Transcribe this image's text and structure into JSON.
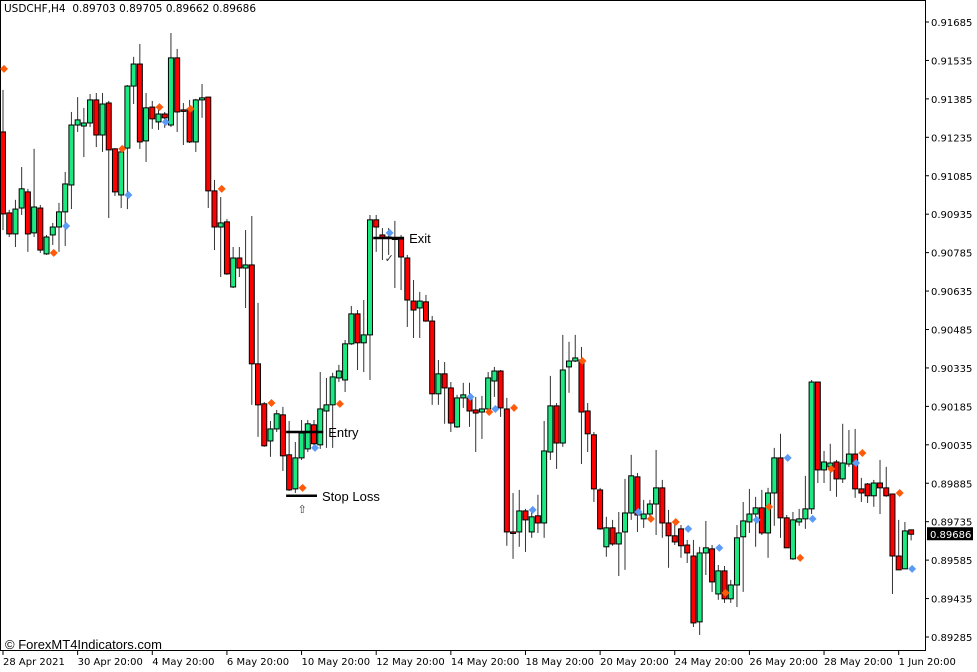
{
  "header": {
    "symbol": "USDCHF,H4",
    "ohlc": "0.89703 0.89705 0.89662 0.89686"
  },
  "watermark": "© ForexMT4Indicators.com",
  "colors": {
    "bull": "#1de982",
    "bear": "#ff0000",
    "sell_marker": "#ff5a0a",
    "buy_marker": "#5b9bf5",
    "price_box": "#000000"
  },
  "chart_data": {
    "type": "candlestick",
    "symbol": "USDCHF",
    "timeframe": "H4",
    "ylim": [
      0.89285,
      0.91685
    ],
    "y_ticks": [
      "0.91685",
      "0.91535",
      "0.91385",
      "0.91235",
      "0.91085",
      "0.90935",
      "0.90785",
      "0.90635",
      "0.90485",
      "0.90335",
      "0.90185",
      "0.90035",
      "0.89885",
      "0.89735",
      "0.89585",
      "0.89435",
      "0.89285"
    ],
    "current_price": "0.89686",
    "x_ticks": [
      {
        "candle": 1,
        "label": "28 Apr 2021"
      },
      {
        "candle": 13,
        "label": "30 Apr 20:00"
      },
      {
        "candle": 25,
        "label": "4 May 20:00"
      },
      {
        "candle": 37,
        "label": "6 May 20:00"
      },
      {
        "candle": 49,
        "label": "10 May 20:00"
      },
      {
        "candle": 61,
        "label": "12 May 20:00"
      },
      {
        "candle": 73,
        "label": "14 May 20:00"
      },
      {
        "candle": 85,
        "label": "18 May 20:00"
      },
      {
        "candle": 97,
        "label": "20 May 20:00"
      },
      {
        "candle": 109,
        "label": "24 May 20:00"
      },
      {
        "candle": 121,
        "label": "26 May 20:00"
      },
      {
        "candle": 133,
        "label": "28 May 20:00"
      },
      {
        "candle": 145,
        "label": "1 Jun 20:00"
      }
    ],
    "ohlc_fields": [
      "open",
      "high",
      "low",
      "close"
    ],
    "candles": [
      [
        0.91256,
        0.9142,
        0.90873,
        0.90936
      ],
      [
        0.9094,
        0.90952,
        0.90846,
        0.90858
      ],
      [
        0.90858,
        0.90991,
        0.90807,
        0.90955
      ],
      [
        0.90959,
        0.91119,
        0.90932,
        0.91034
      ],
      [
        0.91022,
        0.91034,
        0.90788,
        0.90858
      ],
      [
        0.90862,
        0.9119,
        0.90846,
        0.90963
      ],
      [
        0.90959,
        0.90971,
        0.90784,
        0.90795
      ],
      [
        0.9078,
        0.90854,
        0.90776,
        0.90846
      ],
      [
        0.90854,
        0.90901,
        0.90815,
        0.90885
      ],
      [
        0.90885,
        0.90979,
        0.90788,
        0.90944
      ],
      [
        0.90944,
        0.911,
        0.90811,
        0.91053
      ],
      [
        0.91049,
        0.91334,
        0.90955,
        0.91283
      ],
      [
        0.91283,
        0.91392,
        0.91256,
        0.91303
      ],
      [
        0.91279,
        0.9135,
        0.91158,
        0.91291
      ],
      [
        0.91291,
        0.91404,
        0.91275,
        0.91381
      ],
      [
        0.91381,
        0.91408,
        0.91197,
        0.91244
      ],
      [
        0.91244,
        0.91408,
        0.91178,
        0.91365
      ],
      [
        0.91369,
        0.91377,
        0.9092,
        0.91186
      ],
      [
        0.9119,
        0.91193,
        0.91006,
        0.91022
      ],
      [
        0.9101,
        0.9119,
        0.90959,
        0.91178
      ],
      [
        0.91193,
        0.91439,
        0.90955,
        0.91435
      ],
      [
        0.91435,
        0.91549,
        0.91365,
        0.91521
      ],
      [
        0.91521,
        0.91599,
        0.9119,
        0.91217
      ],
      [
        0.91221,
        0.91408,
        0.91139,
        0.9135
      ],
      [
        0.91353,
        0.91377,
        0.91268,
        0.91307
      ],
      [
        0.91295,
        0.91361,
        0.91264,
        0.91326
      ],
      [
        0.91326,
        0.91334,
        0.91272,
        0.91311
      ],
      [
        0.91283,
        0.91642,
        0.91275,
        0.91545
      ],
      [
        0.91545,
        0.9158,
        0.91256,
        0.91334
      ],
      [
        0.91342,
        0.91369,
        0.91205,
        0.91338
      ],
      [
        0.91346,
        0.91381,
        0.91213,
        0.91217
      ],
      [
        0.91217,
        0.91385,
        0.91178,
        0.91381
      ],
      [
        0.91381,
        0.91443,
        0.91311,
        0.91389
      ],
      [
        0.91392,
        0.91392,
        0.90959,
        0.91026
      ],
      [
        0.91026,
        0.91069,
        0.90795,
        0.90885
      ],
      [
        0.90885,
        0.91002,
        0.9069,
        0.90901
      ],
      [
        0.90905,
        0.90916,
        0.90698,
        0.90702
      ],
      [
        0.90651,
        0.90807,
        0.90647,
        0.90764
      ],
      [
        0.90764,
        0.90807,
        0.9069,
        0.90725
      ],
      [
        0.90725,
        0.90873,
        0.90569,
        0.90737
      ],
      [
        0.90737,
        0.90928,
        0.90191,
        0.90351
      ],
      [
        0.90351,
        0.90589,
        0.90066,
        0.90191
      ],
      [
        0.90195,
        0.90202,
        0.90027,
        0.90031
      ],
      [
        0.9005,
        0.90128,
        0.89988,
        0.90097
      ],
      [
        0.90097,
        0.90171,
        0.90085,
        0.90156
      ],
      [
        0.90152,
        0.90183,
        0.89933,
        0.89992
      ],
      [
        0.89996,
        0.90128,
        0.89855,
        0.89859
      ],
      [
        0.89863,
        0.90046,
        0.89847,
        0.89984
      ],
      [
        0.89984,
        0.90132,
        0.89976,
        0.90081
      ],
      [
        0.90019,
        0.90132,
        0.90007,
        0.90117
      ],
      [
        0.90113,
        0.90132,
        0.90027,
        0.90039
      ],
      [
        0.90035,
        0.90319,
        0.90019,
        0.90175
      ],
      [
        0.90167,
        0.90296,
        0.90023,
        0.90191
      ],
      [
        0.90191,
        0.90316,
        0.90023,
        0.903
      ],
      [
        0.90296,
        0.90347,
        0.9028,
        0.90323
      ],
      [
        0.90288,
        0.90444,
        0.90241,
        0.90429
      ],
      [
        0.90429,
        0.90577,
        0.90425,
        0.90546
      ],
      [
        0.90546,
        0.90561,
        0.90327,
        0.90433
      ],
      [
        0.90433,
        0.906,
        0.90319,
        0.90464
      ],
      [
        0.90464,
        0.90932,
        0.90288,
        0.90913
      ],
      [
        0.90913,
        0.90932,
        0.90788,
        0.90885
      ],
      [
        0.90854,
        0.90881,
        0.90756,
        0.90842
      ],
      [
        0.90846,
        0.90881,
        0.90776,
        0.90842
      ],
      [
        0.90842,
        0.90909,
        0.90647,
        0.90838
      ],
      [
        0.90838,
        0.90854,
        0.90639,
        0.90768
      ],
      [
        0.90764,
        0.90776,
        0.90495,
        0.906
      ],
      [
        0.90596,
        0.90678,
        0.90452,
        0.90561
      ],
      [
        0.90569,
        0.90632,
        0.90452,
        0.90596
      ],
      [
        0.90593,
        0.9062,
        0.90515,
        0.90518
      ],
      [
        0.90518,
        0.90538,
        0.90191,
        0.90234
      ],
      [
        0.90234,
        0.90366,
        0.90191,
        0.90312
      ],
      [
        0.90312,
        0.90358,
        0.90117,
        0.90257
      ],
      [
        0.90257,
        0.9028,
        0.90085,
        0.9012
      ],
      [
        0.90105,
        0.9023,
        0.90101,
        0.90218
      ],
      [
        0.90218,
        0.90277,
        0.90179,
        0.9023
      ],
      [
        0.90218,
        0.90277,
        0.90105,
        0.90167
      ],
      [
        0.90171,
        0.90222,
        0.90007,
        0.90159
      ],
      [
        0.90163,
        0.90226,
        0.90058,
        0.90175
      ],
      [
        0.90175,
        0.90319,
        0.90171,
        0.90296
      ],
      [
        0.90284,
        0.90339,
        0.90222,
        0.90323
      ],
      [
        0.90323,
        0.90327,
        0.90144,
        0.90179
      ],
      [
        0.90175,
        0.90218,
        0.89641,
        0.89695
      ],
      [
        0.89695,
        0.89847,
        0.8959,
        0.89691
      ],
      [
        0.89695,
        0.89859,
        0.89637,
        0.89777
      ],
      [
        0.89777,
        0.89785,
        0.89617,
        0.89742
      ],
      [
        0.89695,
        0.89777,
        0.89672,
        0.89754
      ],
      [
        0.89758,
        0.8984,
        0.89691,
        0.8973
      ],
      [
        0.8973,
        0.90128,
        0.89672,
        0.90011
      ],
      [
        0.90007,
        0.90304,
        0.89976,
        0.90187
      ],
      [
        0.90187,
        0.90198,
        0.89941,
        0.90042
      ],
      [
        0.90042,
        0.90464,
        0.90027,
        0.90327
      ],
      [
        0.90339,
        0.90437,
        0.90238,
        0.90362
      ],
      [
        0.90362,
        0.90464,
        0.90358,
        0.90374
      ],
      [
        0.90366,
        0.90417,
        0.8996,
        0.90163
      ],
      [
        0.90167,
        0.90198,
        0.90007,
        0.90078
      ],
      [
        0.90074,
        0.90085,
        0.89812,
        0.89863
      ],
      [
        0.89859,
        0.89867,
        0.89703,
        0.89707
      ],
      [
        0.89637,
        0.89754,
        0.89598,
        0.89711
      ],
      [
        0.89711,
        0.89742,
        0.89641,
        0.89648
      ],
      [
        0.89648,
        0.89773,
        0.89523,
        0.89691
      ],
      [
        0.89695,
        0.89902,
        0.89547,
        0.89769
      ],
      [
        0.89769,
        0.89996,
        0.89742,
        0.89914
      ],
      [
        0.8991,
        0.89925,
        0.89695,
        0.89761
      ],
      [
        0.89746,
        0.8982,
        0.89711,
        0.89765
      ],
      [
        0.89765,
        0.8982,
        0.89742,
        0.89804
      ],
      [
        0.89804,
        0.90015,
        0.89683,
        0.89867
      ],
      [
        0.89867,
        0.89898,
        0.89672,
        0.8973
      ],
      [
        0.8973,
        0.89781,
        0.89555,
        0.8968
      ],
      [
        0.8968,
        0.89742,
        0.89644,
        0.89656
      ],
      [
        0.89707,
        0.89722,
        0.89594,
        0.89641
      ],
      [
        0.89644,
        0.89664,
        0.89574,
        0.89613
      ],
      [
        0.89601,
        0.89664,
        0.89324,
        0.8934
      ],
      [
        0.89344,
        0.89637,
        0.89293,
        0.89613
      ],
      [
        0.89613,
        0.89738,
        0.89527,
        0.89633
      ],
      [
        0.89629,
        0.89644,
        0.89461,
        0.895
      ],
      [
        0.89453,
        0.89566,
        0.8943,
        0.89543
      ],
      [
        0.89543,
        0.89562,
        0.89418,
        0.89434
      ],
      [
        0.89434,
        0.89508,
        0.89418,
        0.89488
      ],
      [
        0.89488,
        0.89722,
        0.89402,
        0.89672
      ],
      [
        0.89676,
        0.89812,
        0.89461,
        0.89738
      ],
      [
        0.89734,
        0.89863,
        0.89691,
        0.89765
      ],
      [
        0.89765,
        0.89832,
        0.89637,
        0.89789
      ],
      [
        0.89789,
        0.89859,
        0.89683,
        0.89691
      ],
      [
        0.89691,
        0.89867,
        0.89594,
        0.89847
      ],
      [
        0.89847,
        0.90023,
        0.89719,
        0.89984
      ],
      [
        0.89984,
        0.90078,
        0.89672,
        0.8975
      ],
      [
        0.8975,
        0.89761,
        0.89633,
        0.89633
      ],
      [
        0.8959,
        0.89773,
        0.89586,
        0.89742
      ],
      [
        0.89734,
        0.89785,
        0.89719,
        0.89746
      ],
      [
        0.89746,
        0.89914,
        0.89707,
        0.89785
      ],
      [
        0.89785,
        0.90288,
        0.89765,
        0.9028
      ],
      [
        0.9028,
        0.9028,
        0.89886,
        0.89937
      ],
      [
        0.89937,
        0.90011,
        0.89886,
        0.89968
      ],
      [
        0.89949,
        0.90039,
        0.89855,
        0.89964
      ],
      [
        0.89968,
        0.89976,
        0.89832,
        0.89902
      ],
      [
        0.89902,
        0.90117,
        0.89886,
        0.89964
      ],
      [
        0.8996,
        0.90093,
        0.89949,
        0.89999
      ],
      [
        0.89999,
        0.90097,
        0.89828,
        0.89863
      ],
      [
        0.89863,
        0.89906,
        0.89812,
        0.89847
      ],
      [
        0.89882,
        0.89886,
        0.89808,
        0.89836
      ],
      [
        0.89836,
        0.89898,
        0.89793,
        0.89886
      ],
      [
        0.89886,
        0.89976,
        0.89765,
        0.89867
      ],
      [
        0.89867,
        0.89949,
        0.89832,
        0.89836
      ],
      [
        0.89843,
        0.89843,
        0.89453,
        0.89601
      ],
      [
        0.89601,
        0.89742,
        0.89547,
        0.89547
      ],
      [
        0.89551,
        0.89734,
        0.89551,
        0.89699
      ],
      [
        0.89703,
        0.89705,
        0.89662,
        0.89686
      ]
    ],
    "markers": [
      {
        "candle": 1,
        "price": 0.91502,
        "type": "sell"
      },
      {
        "candle": 9,
        "price": 0.90784,
        "type": "sell"
      },
      {
        "candle": 11,
        "price": 0.90889,
        "type": "buy"
      },
      {
        "candle": 20,
        "price": 0.9119,
        "type": "sell"
      },
      {
        "candle": 21,
        "price": 0.9101,
        "type": "buy"
      },
      {
        "candle": 26,
        "price": 0.91353,
        "type": "sell"
      },
      {
        "candle": 27,
        "price": 0.91295,
        "type": "buy"
      },
      {
        "candle": 31,
        "price": 0.91346,
        "type": "sell"
      },
      {
        "candle": 36,
        "price": 0.91034,
        "type": "sell"
      },
      {
        "candle": 44,
        "price": 0.90198,
        "type": "sell"
      },
      {
        "candle": 49,
        "price": 0.89867,
        "type": "sell"
      },
      {
        "candle": 51,
        "price": 0.90023,
        "type": "buy"
      },
      {
        "candle": 55,
        "price": 0.90195,
        "type": "sell"
      },
      {
        "candle": 63,
        "price": 0.90862,
        "type": "buy"
      },
      {
        "candle": 76,
        "price": 0.90222,
        "type": "buy"
      },
      {
        "candle": 79,
        "price": 0.90163,
        "type": "sell"
      },
      {
        "candle": 80,
        "price": 0.90175,
        "type": "buy"
      },
      {
        "candle": 83,
        "price": 0.90179,
        "type": "sell"
      },
      {
        "candle": 86,
        "price": 0.89781,
        "type": "buy"
      },
      {
        "candle": 94,
        "price": 0.90362,
        "type": "sell"
      },
      {
        "candle": 103,
        "price": 0.89773,
        "type": "buy"
      },
      {
        "candle": 105,
        "price": 0.89746,
        "type": "sell"
      },
      {
        "candle": 109,
        "price": 0.89734,
        "type": "sell"
      },
      {
        "candle": 111,
        "price": 0.89707,
        "type": "buy"
      },
      {
        "candle": 116,
        "price": 0.89633,
        "type": "buy"
      },
      {
        "candle": 117,
        "price": 0.89457,
        "type": "sell"
      },
      {
        "candle": 122,
        "price": 0.89742,
        "type": "buy"
      },
      {
        "candle": 124,
        "price": 0.89793,
        "type": "sell"
      },
      {
        "candle": 127,
        "price": 0.89984,
        "type": "buy"
      },
      {
        "candle": 129,
        "price": 0.89594,
        "type": "sell"
      },
      {
        "candle": 131,
        "price": 0.89746,
        "type": "buy"
      },
      {
        "candle": 134,
        "price": 0.89941,
        "type": "sell"
      },
      {
        "candle": 138,
        "price": 0.89964,
        "type": "buy"
      },
      {
        "candle": 139,
        "price": 0.90003,
        "type": "sell"
      },
      {
        "candle": 145,
        "price": 0.89847,
        "type": "sell"
      },
      {
        "candle": 147,
        "price": 0.89551,
        "type": "buy"
      }
    ],
    "annotations": [
      {
        "label": "Entry",
        "price": 0.90085,
        "from": 47,
        "to": 52
      },
      {
        "label": "Stop Loss",
        "price": 0.89836,
        "from": 47,
        "to": 51
      },
      {
        "label": "Exit",
        "price": 0.90842,
        "from": 61,
        "to": 65
      }
    ],
    "entry_arrow": {
      "candle": 49,
      "symbol": "⇧"
    },
    "exit_check": {
      "candle": 63,
      "symbol": "✓"
    }
  }
}
